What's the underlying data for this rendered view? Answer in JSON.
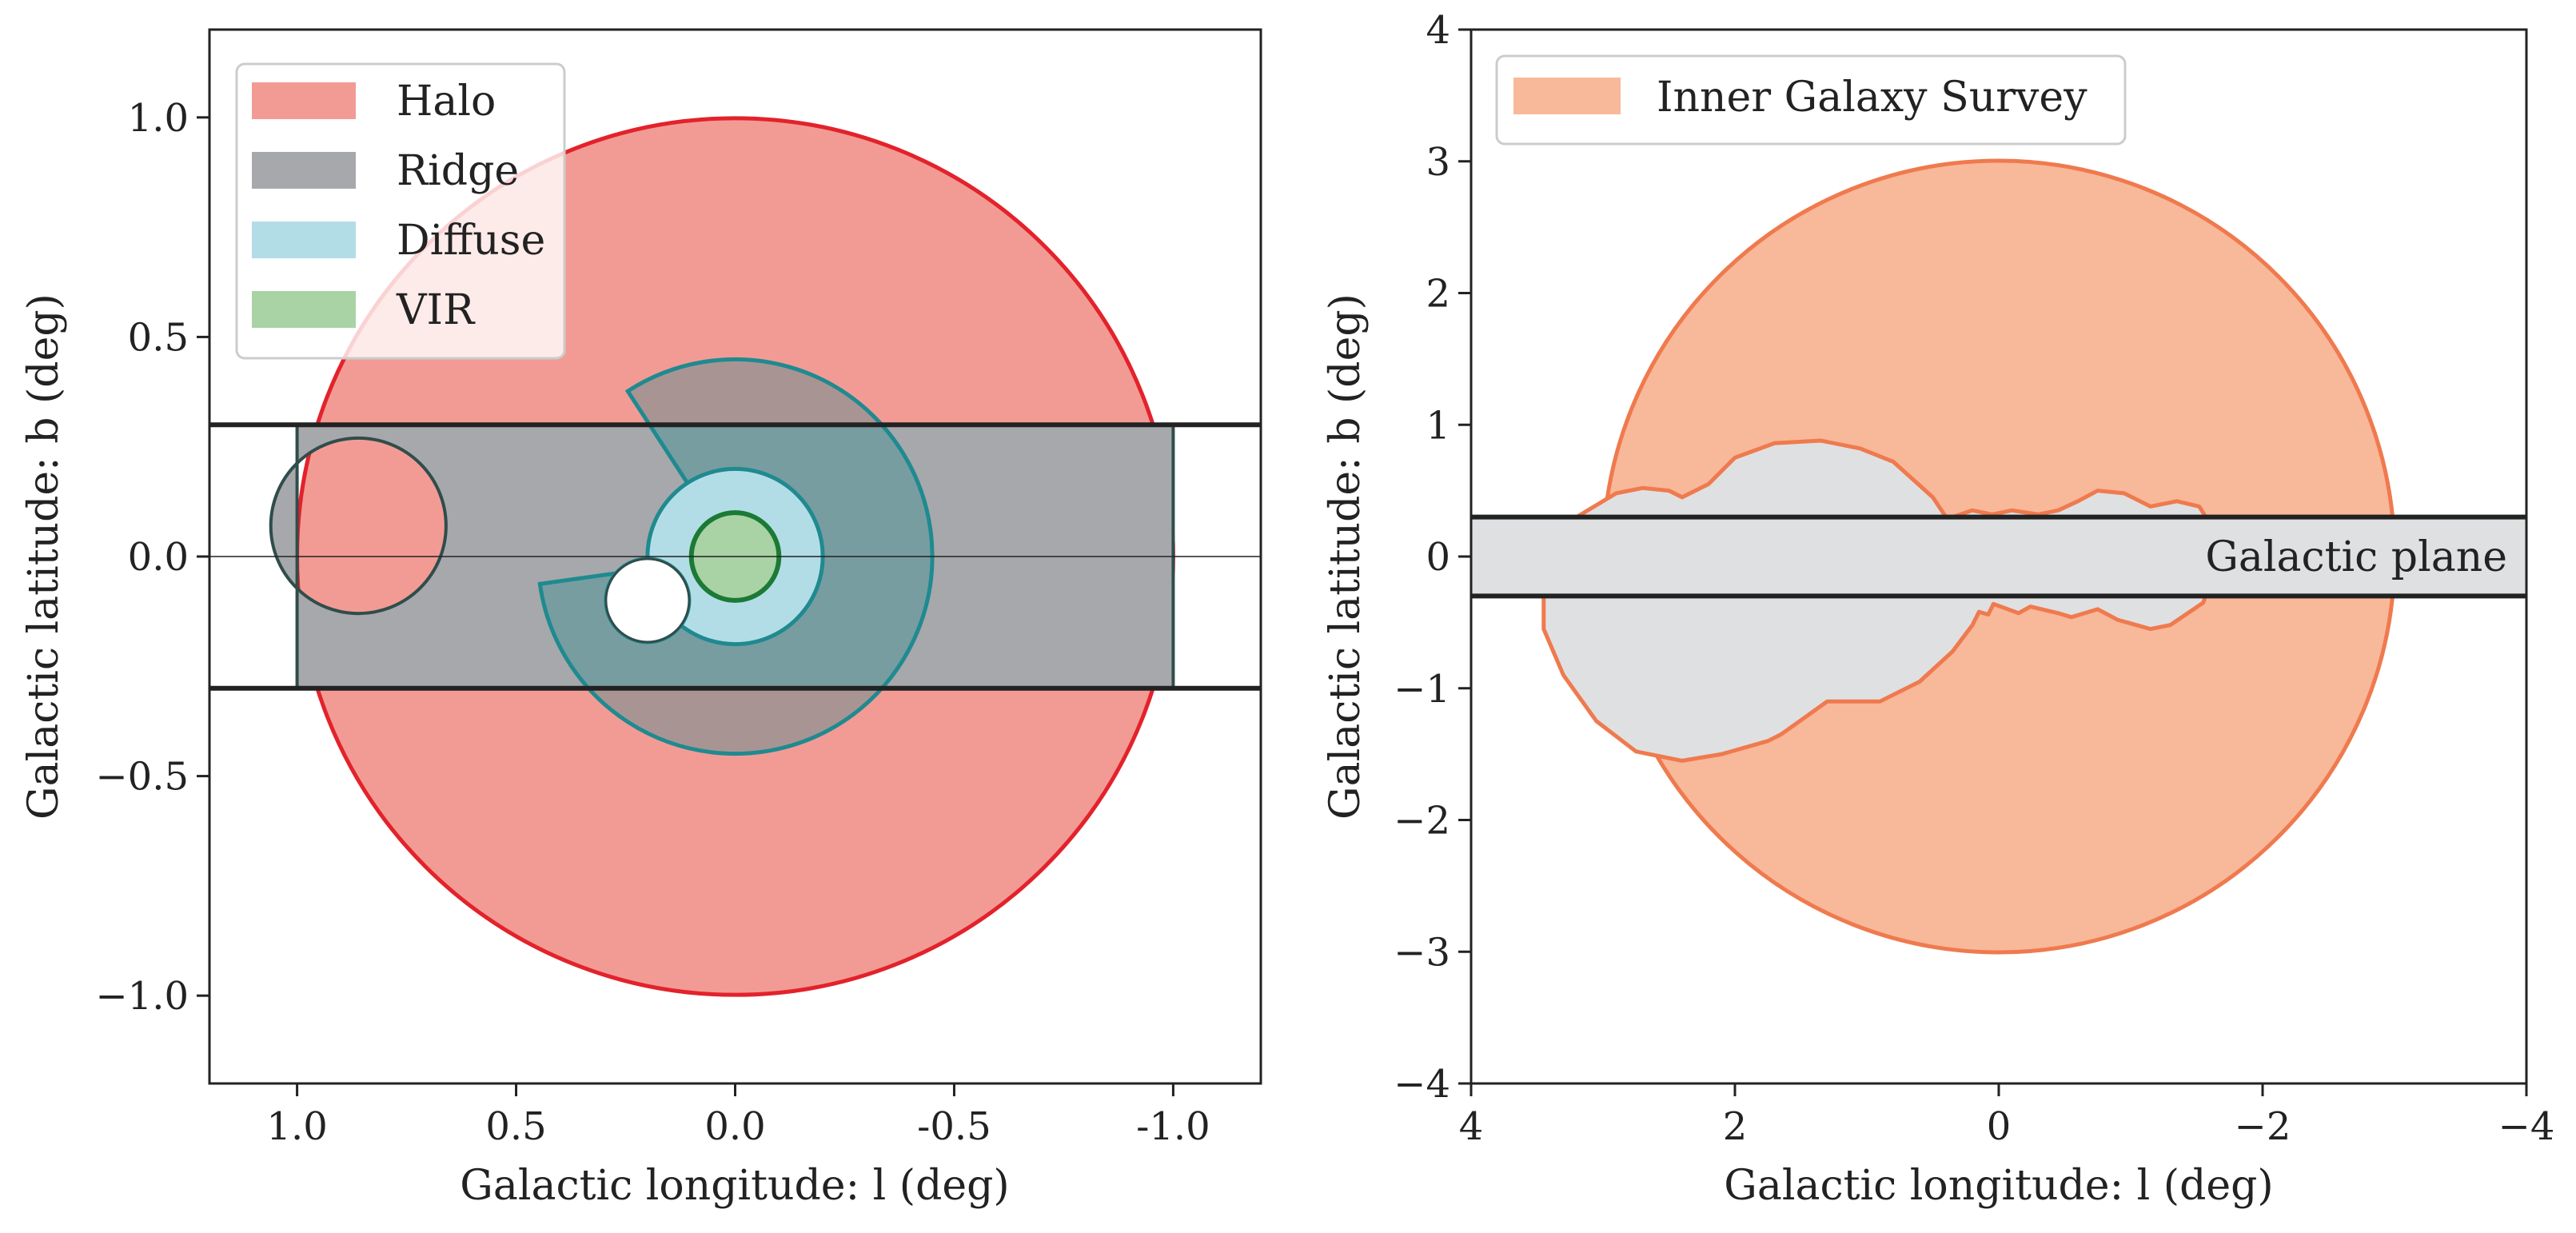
{
  "chart_data": [
    {
      "type": "region-map",
      "xlabel": "Galactic longitude: l (deg)",
      "ylabel": "Galactic latitude: b (deg)",
      "xlim": [
        1.2,
        -1.2
      ],
      "ylim": [
        -1.2,
        1.2
      ],
      "xticks": [
        1.0,
        0.5,
        0.0,
        -0.5,
        -1.0
      ],
      "xtick_labels": [
        "1.0",
        "0.5",
        "0.0",
        "-0.5",
        "-1.0"
      ],
      "yticks": [
        -1.0,
        -0.5,
        0.0,
        0.5,
        1.0
      ],
      "ytick_labels": [
        "−1.0",
        "−0.5",
        "0.0",
        "0.5",
        "1.0"
      ],
      "legend_position": "upper-left",
      "legend": [
        {
          "label": "Halo",
          "color": "#f29b95"
        },
        {
          "label": "Ridge",
          "color": "#a7a8ab"
        },
        {
          "label": "Diffuse",
          "color": "#b3dde6"
        },
        {
          "label": "VIR",
          "color": "#a9d2a5"
        }
      ],
      "regions": {
        "halo": {
          "shape": "circle",
          "center": [
            0,
            0
          ],
          "radius": 1.0,
          "fill": "#f29b95",
          "edge": "#e3222b"
        },
        "ridge": {
          "shape": "band",
          "l_range": [
            1.0,
            -1.0
          ],
          "b_range": [
            -0.3,
            0.3
          ],
          "fill": "#a7a8ab",
          "edge": "#2f4d4b"
        },
        "ridge_hole": {
          "shape": "circle",
          "center": [
            0.86,
            0.07
          ],
          "radius": 0.2
        },
        "diffuse_outer": {
          "shape": "sector",
          "center": [
            0,
            0
          ],
          "radius": 0.45,
          "gap_from_deg": 172,
          "gap_to_deg": 237,
          "fill": "#1f8a90",
          "edge": "#1f8a90"
        },
        "diffuse_inner": {
          "shape": "disk",
          "center": [
            0,
            0
          ],
          "radius": 0.2,
          "fill": "#b3dde6",
          "edge": "#1f8a90"
        },
        "inner_hole": {
          "shape": "circle",
          "center": [
            0.2,
            -0.1
          ],
          "radius": 0.095
        },
        "vir": {
          "shape": "circle",
          "center": [
            0,
            0
          ],
          "radius": 0.1,
          "fill": "#a9d2a5",
          "edge": "#1b7a35"
        }
      },
      "plane_lines_b": [
        0.3,
        -0.3
      ],
      "center_line_b": 0.0
    },
    {
      "type": "region-map",
      "xlabel": "Galactic longitude: l (deg)",
      "ylabel": "Galactic latitude: b (deg)",
      "xlim": [
        4,
        -4
      ],
      "ylim": [
        -4,
        4
      ],
      "xticks": [
        4,
        2,
        0,
        -2,
        -4
      ],
      "xtick_labels": [
        "4",
        "2",
        "0",
        "−2",
        "−4"
      ],
      "yticks": [
        -4,
        -3,
        -2,
        -1,
        0,
        1,
        2,
        3,
        4
      ],
      "ytick_labels": [
        "−4",
        "−3",
        "−2",
        "−1",
        "0",
        "1",
        "2",
        "3",
        "4"
      ],
      "legend_position": "upper-left",
      "legend": [
        {
          "label": "Inner Galaxy Survey",
          "color": "#f8b89a"
        }
      ],
      "regions": {
        "survey": {
          "shape": "circle",
          "center": [
            0,
            0
          ],
          "radius": 3.0,
          "fill": "#f8b89a",
          "edge": "#ef7a4e"
        },
        "cutout_outline_lb": [
          [
            0.4,
            0.3
          ],
          [
            0.5,
            0.45
          ],
          [
            0.8,
            0.72
          ],
          [
            1.05,
            0.82
          ],
          [
            1.35,
            0.88
          ],
          [
            1.7,
            0.86
          ],
          [
            2.0,
            0.75
          ],
          [
            2.2,
            0.55
          ],
          [
            2.4,
            0.45
          ],
          [
            2.5,
            0.5
          ],
          [
            2.7,
            0.52
          ],
          [
            2.9,
            0.48
          ],
          [
            3.2,
            0.3
          ],
          [
            3.4,
            0.08
          ],
          [
            3.45,
            -0.2
          ],
          [
            3.45,
            -0.55
          ],
          [
            3.3,
            -0.9
          ],
          [
            3.05,
            -1.25
          ],
          [
            2.75,
            -1.48
          ],
          [
            2.4,
            -1.55
          ],
          [
            2.1,
            -1.5
          ],
          [
            1.75,
            -1.4
          ],
          [
            1.65,
            -1.35
          ],
          [
            1.3,
            -1.1
          ],
          [
            0.9,
            -1.1
          ],
          [
            0.6,
            -0.95
          ],
          [
            0.35,
            -0.72
          ],
          [
            0.2,
            -0.52
          ],
          [
            0.15,
            -0.42
          ],
          [
            0.08,
            -0.44
          ],
          [
            0.04,
            -0.36
          ],
          [
            -0.15,
            -0.43
          ],
          [
            -0.24,
            -0.38
          ],
          [
            -0.45,
            -0.43
          ],
          [
            -0.55,
            -0.46
          ],
          [
            -0.75,
            -0.4
          ],
          [
            -0.9,
            -0.48
          ],
          [
            -1.15,
            -0.55
          ],
          [
            -1.3,
            -0.52
          ],
          [
            -1.55,
            -0.35
          ],
          [
            -1.6,
            -0.2
          ],
          [
            -1.62,
            0.0
          ],
          [
            -1.6,
            0.25
          ],
          [
            -1.52,
            0.38
          ],
          [
            -1.35,
            0.42
          ],
          [
            -1.15,
            0.38
          ],
          [
            -0.95,
            0.48
          ],
          [
            -0.75,
            0.5
          ],
          [
            -0.6,
            0.42
          ],
          [
            -0.45,
            0.35
          ],
          [
            -0.3,
            0.32
          ],
          [
            -0.1,
            0.35
          ],
          [
            0.05,
            0.32
          ],
          [
            0.2,
            0.35
          ],
          [
            0.35,
            0.3
          ],
          [
            0.4,
            0.3
          ]
        ],
        "cutout_fill": "#dfe0e2"
      },
      "plane_lines_b": [
        0.3,
        -0.3
      ],
      "plane_fill": "#dfe0e2",
      "annotation": "Galactic plane"
    }
  ]
}
